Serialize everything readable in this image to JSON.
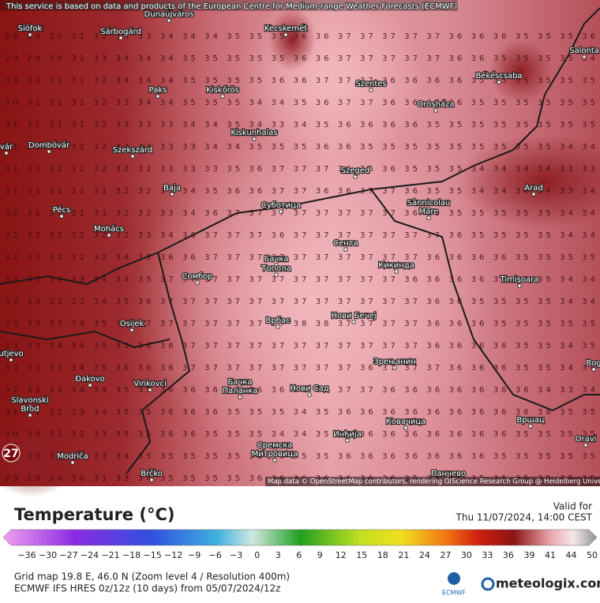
{
  "header": {
    "notice": "This service is based on data and products of the European Centre for Medium-range Weather Forecasts (ECMWF)"
  },
  "map": {
    "attribution": "Map data © OpenStreetMap contributors, rendering GIScience Research Group @ Heidelberg University",
    "marker": "27",
    "grid_rows": [
      "28 29 30 31 32 33 33 34 34 34 35 35 35 36 36 37 37 37 37 37 36 36 36 35 35 35 36",
      "29 29 30 31 33 34 34 34 35 35 35 35 35 36 36 37 37 37 37 37 36 36 35 35 35 35 34",
      "30 30 31 31 32 34 34 34 35 35 35 35 36 36 37 37 37 36 36 36 36 35 35 35 35 35 35",
      "30 31 31 31 32 33 34 34 35 35 35 34 34 35 36 37 37 36 36 36 36 35 35 35 35 35 35",
      "31 31 31 31 32 33 33 33 34 34 35 34 33 34 35 36 36 36 36 35 35 35 35 35 35 35 35",
      "31 31 31 32 32 32 33 33 33 34 34 35 35 35 36 36 35 35 35 35 35 35 35 35 35 34 34",
      "31 31 32 32 32 32 32 33 33 33 35 36 37 37 37 36 36 36 35 35 35 34 34 34 34 33 33",
      "31 31 31 31 31 32 32 33 34 35 36 36 37 37 36 36 37 37 36 35 35 34 34 34 34 33 34",
      "32 31 31 31 31 32 32 33 34 36 37 37 37 37 37 37 37 37 36 35 35 35 35 35 35 34 34",
      "32 32 31 32 32 32 33 34 36 37 37 37 36 37 37 37 37 37 37 37 36 35 35 35 35 34 34",
      "32 32 32 32 32 34 35 36 36 37 37 37 37 37 37 37 37 37 37 36 36 36 36 35 35 35 35",
      "33 33 33 33 34 34 35 37 37 37 37 37 37 37 37 37 37 37 36 36 36 36 35 35 35 34 34",
      "33 33 33 33 34 35 36 37 37 37 37 37 37 37 37 37 37 37 37 36 36 35 35 35 35 34 34",
      "33 33 33 34 35 35 37 37 37 37 37 37 37 38 38 37 37 37 37 36 36 36 35 35 35 35 35",
      "33 33 34 34 35 35 36 36 37 37 37 37 37 37 37 37 37 37 37 36 36 36 36 35 35 34 35",
      "33 33 33 34 35 36 36 36 37 37 37 37 37 37 37 37 36 37 37 37 36 36 36 35 35 34 34",
      "32 32 33 34 34 35 35 36 36 36 36 36 36 36 37 37 37 36 36 36 36 36 36 36 34 33 34",
      "31 31 32 33 34 35 35 36 36 36 35 35 35 34 35 36 36 36 36 36 36 36 36 36 36 35 35",
      "30 30 31 32 33 35 35 36 36 35 35 35 34 34 35 35 36 36 36 36 36 36 36 35 35 35 35",
      "29 30 30 31 33 34 35 35 35 35 35 35 35 35 35 36 36 36 36 36 36 36 35 35 35 35 35",
      "29 29 30 30 31 33 34 35 35 35 35 36 36 36 36 36 36 36 35 35 35 35 35 35 35 35 35"
    ],
    "cities": [
      "Siófok",
      "Sárbogárd",
      "Dunaújváros",
      "Kecskemét",
      "Paks",
      "Kiskőrös",
      "Szentes",
      "Orosháza",
      "Békéscsaba",
      "Salonta",
      "Kiskunhalas",
      "Dombóvár",
      "Szekszárd",
      "Szeged",
      "Baja",
      "Arad",
      "Pécs",
      "Суботица",
      "Sânnicolau",
      "Mare",
      "Mohács",
      "Сента",
      "Бачка",
      "Топола",
      "Кикинда",
      "Сомбор",
      "Timișoara",
      "Osijek",
      "Врбас",
      "Нови Бечеј",
      "utjevo",
      "Зрењанин",
      "Bog",
      "Đakovo",
      "Vinkovci",
      "Бачка",
      "Паланка",
      "Нови Сад",
      "Slavonski",
      "Brod",
      "Вршац",
      "Ковачица",
      "Инђија",
      "Oravi",
      "Modriča",
      "Сремска",
      "Митровица",
      "Brčko",
      "Панчево",
      "vár"
    ]
  },
  "legend": {
    "title": "Temperature (°C)",
    "valid_label": "Valid for",
    "valid_time": "Thu 11/07/2024, 14:00 CEST",
    "ticks": [
      "−36",
      "−30",
      "−27",
      "−24",
      "−21",
      "−18",
      "−15",
      "−12",
      "−9",
      "−6",
      "−3",
      "0",
      "3",
      "6",
      "9",
      "12",
      "15",
      "18",
      "21",
      "24",
      "27",
      "30",
      "33",
      "36",
      "39",
      "41",
      "44",
      "50"
    ]
  },
  "footer": {
    "line1": "Grid map 19.8 E, 46.0 N (Zoom level 4 / Resolution 400m)",
    "line2": "ECMWF IFS HRES 0z/12z (10 days) from 05/07/2024/12z",
    "ecmwf": "ECMWF",
    "brand": "meteologix.com"
  }
}
